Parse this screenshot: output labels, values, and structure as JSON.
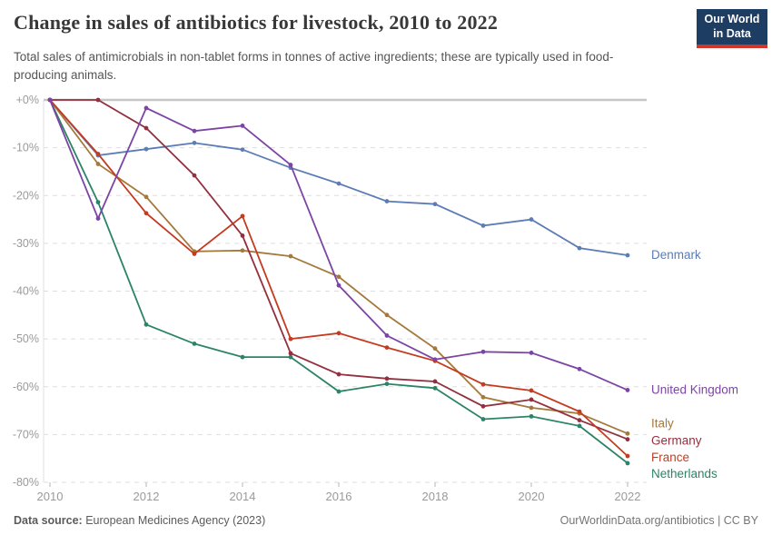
{
  "header": {
    "title": "Change in sales of antibiotics for livestock, 2010 to 2022",
    "subtitle": "Total sales of antimicrobials in non-tablet forms in tonnes of active ingredients; these are typically used in food-producing animals.",
    "logo": {
      "line1": "Our World",
      "line2": "in Data",
      "bg_color": "#1d3d63",
      "accent_color": "#d0352b"
    }
  },
  "chart_data": {
    "type": "line",
    "title": "Change in sales of antibiotics for livestock, 2010 to 2022",
    "unit": "%",
    "x": [
      2010,
      2011,
      2012,
      2013,
      2014,
      2015,
      2016,
      2017,
      2018,
      2019,
      2020,
      2021,
      2022
    ],
    "x_tick_years": [
      2010,
      2012,
      2014,
      2016,
      2018,
      2020,
      2022
    ],
    "x_tick_labels": [
      "2010",
      "2012",
      "2014",
      "2016",
      "2018",
      "2020",
      "2022"
    ],
    "y_ticks": [
      0,
      -10,
      -20,
      -30,
      -40,
      -50,
      -60,
      -70,
      -80
    ],
    "y_axis_labels": [
      "+0%",
      "-10%",
      "-20%",
      "-30%",
      "-40%",
      "-50%",
      "-60%",
      "-70%",
      "-80%"
    ],
    "ylim": [
      -80,
      0
    ],
    "grid": "horizontal-dashed",
    "legend_position": "right-end-labels",
    "series": [
      {
        "name": "Denmark",
        "color": "#5b7cb5",
        "values": [
          0,
          -11.6,
          -10.3,
          -9.0,
          -10.4,
          -14.2,
          -17.5,
          -21.2,
          -21.8,
          -26.3,
          -25.0,
          -31.0,
          -32.5
        ]
      },
      {
        "name": "United Kingdom",
        "color": "#7c45a5",
        "values": [
          0,
          -24.8,
          -1.7,
          -6.5,
          -5.4,
          -13.6,
          -38.8,
          -49.3,
          -54.3,
          -52.7,
          -52.9,
          -56.3,
          -60.7
        ]
      },
      {
        "name": "Italy",
        "color": "#a5793c",
        "values": [
          0,
          -13.4,
          -20.3,
          -31.7,
          -31.5,
          -32.7,
          -37.0,
          -45.0,
          -52.0,
          -62.2,
          -64.4,
          -65.6,
          -69.8
        ]
      },
      {
        "name": "Germany",
        "color": "#93303f",
        "values": [
          0,
          0,
          -5.9,
          -15.8,
          -28.4,
          -53.0,
          -57.4,
          -58.3,
          -58.9,
          -64.1,
          -62.7,
          -67.0,
          -71.0
        ]
      },
      {
        "name": "France",
        "color": "#c43b20",
        "values": [
          0,
          -11.3,
          -23.7,
          -32.2,
          -24.3,
          -50.0,
          -48.8,
          -51.8,
          -54.6,
          -59.5,
          -60.8,
          -65.2,
          -74.5
        ]
      },
      {
        "name": "Netherlands",
        "color": "#2b8465",
        "values": [
          0,
          -21.4,
          -47.0,
          -51.0,
          -53.8,
          -53.8,
          -61.0,
          -59.4,
          -60.3,
          -66.8,
          -66.2,
          -68.2,
          -76.0
        ]
      }
    ]
  },
  "footer": {
    "datasource_label": "Data source:",
    "datasource_value": " European Medicines Agency (2023)",
    "attribution": "OurWorldinData.org/antibiotics | CC BY"
  }
}
